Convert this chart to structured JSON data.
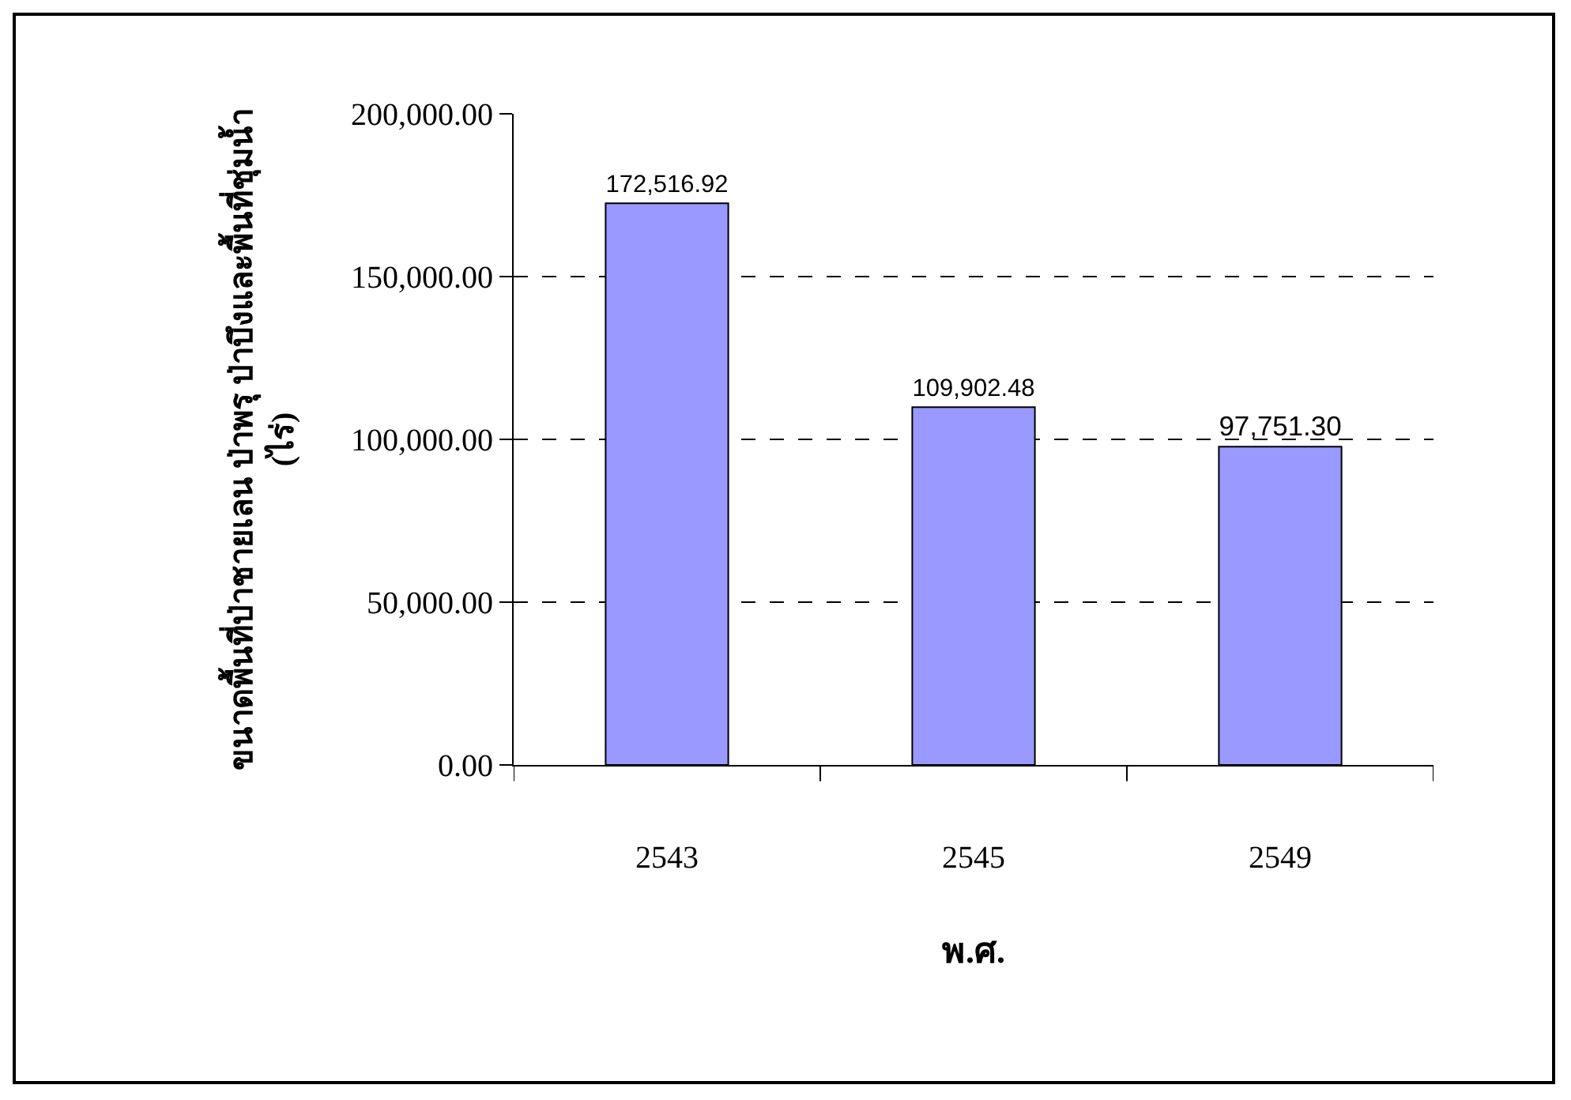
{
  "chart_data": {
    "type": "bar",
    "xlabel": "พ.ศ.",
    "ylabel": "ขนาดพื้นที่ป่าชายเลน ป่าพรุ ป่าบึงและพื้นที่ชุ่มน้ำ\n(ไร่)",
    "categories": [
      "2543",
      "2545",
      "2549"
    ],
    "values": [
      172516.92,
      109902.48,
      97751.3
    ],
    "color": "#9999ff",
    "value_labels": [
      "172,516.92",
      "109,902.48",
      "97,751.30"
    ],
    "ylim": [
      0,
      200000
    ],
    "yticks": [
      {
        "value": 0,
        "label": "0.00"
      },
      {
        "value": 50000,
        "label": "50,000.00"
      },
      {
        "value": 100000,
        "label": "100,000.00"
      },
      {
        "value": 150000,
        "label": "150,000.00"
      },
      {
        "value": 200000,
        "label": "200,000.00"
      }
    ],
    "grid": "y",
    "legend": false
  }
}
